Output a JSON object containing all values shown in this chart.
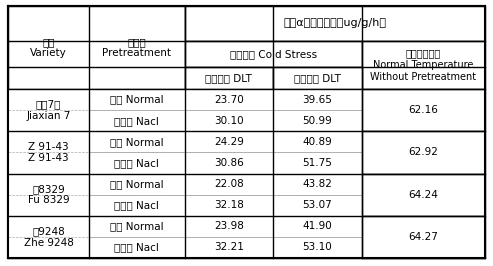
{
  "title": "鲜根α萍胺氧化量（ug/g/h）",
  "variety_col_header": "品种\nVariety",
  "pretreatment_col_header": "预处理\nPretreatment",
  "cold_stress_header": "低温胁迫 Cold Stress",
  "low_temp_subheader": "低温测定 DLT",
  "norm_temp_subheader": "常温测定 DLT",
  "normal_temp_header": "常温无预处理\nNormal Temperature\nWithout Pretreatment",
  "row_groups": [
    {
      "variety_cn": "嘉醹7号",
      "variety_en": "Jiaxian 7",
      "normal_dlt_low": "23.70",
      "normal_dlt_norm": "39.65",
      "nacl_dlt_low": "30.10",
      "nacl_dlt_norm": "50.99",
      "normal_temp_val": "62.16"
    },
    {
      "variety_cn": "Z 91-43",
      "variety_en": "Z 91-43",
      "normal_dlt_low": "24.29",
      "normal_dlt_norm": "40.89",
      "nacl_dlt_low": "30.86",
      "nacl_dlt_norm": "51.75",
      "normal_temp_val": "62.92"
    },
    {
      "variety_cn": "辅8329",
      "variety_en": "Fu 8329",
      "normal_dlt_low": "22.08",
      "normal_dlt_norm": "43.82",
      "nacl_dlt_low": "32.18",
      "nacl_dlt_norm": "53.07",
      "normal_temp_val": "64.24"
    },
    {
      "variety_cn": "枙9248",
      "variety_en": "Zhe 9248",
      "normal_dlt_low": "23.98",
      "normal_dlt_norm": "41.90",
      "nacl_dlt_low": "32.21",
      "nacl_dlt_norm": "53.10",
      "normal_temp_val": "64.27"
    }
  ],
  "normal_label": "正常 Normal",
  "nacl_label": "氯化钓 Nacl",
  "bg_color": "#ffffff",
  "border_color": "#000000",
  "light_border": "#aaaaaa",
  "font_size": 7.5,
  "header_font_size": 7.5
}
